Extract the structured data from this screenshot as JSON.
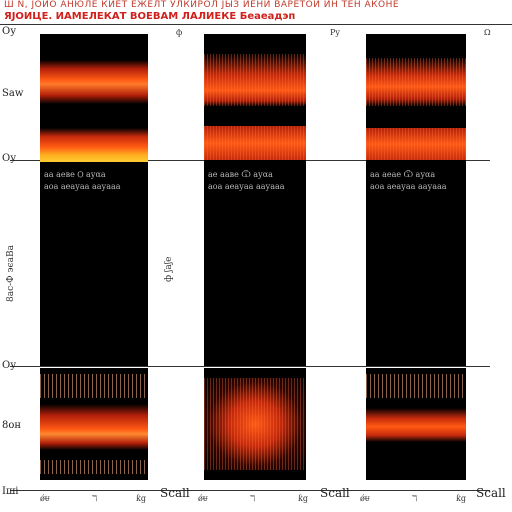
{
  "header": {
    "line1": "Ш  N,  ЈОИО  АНЮЛЕ  КИЕТ  ЕЖЕЛТ  УЛКИРОЛ  ЈЫЗ  ИЕНИ  ВАРЕТОИ  ИН  ТЕН  АКОНЕ",
    "line2": "ЯЈОИЦЕ. ИАМЕЛЕКАТ  ВОЕВАМ   ЛАЛИЕКЕ    Беаеадэп"
  },
  "left_axis": {
    "top_label": "Оу",
    "row1_label": "Sаw",
    "mid_label": "Оу",
    "vertical_label": "8ас-Ф ϶єаВа",
    "low_label": "Оу",
    "bottom_label": "8он",
    "foot_label": "Іші"
  },
  "columns": [
    {
      "top_marker": "ф",
      "caption": "аа аеве Ѻ ауαа",
      "caption2": "аоа аеауаа аауааа",
      "foot": [
        "ǿᵾ",
        "ℸ",
        "ƙg"
      ],
      "foot_right": "Sсаll"
    },
    {
      "top_marker": "Ρy",
      "caption": "ае ааве Ѿ ауαа",
      "caption2": "аоа аеауаа аауааа",
      "foot": [
        "ǿᵾ",
        "ℸ",
        "ƙg"
      ],
      "foot_right": "Sсаll"
    },
    {
      "top_marker": "Ω",
      "caption": "аа аеае Ѿ ауαа",
      "caption2": "аоа аеауаа аауааа",
      "foot": [
        "ǿᵾ",
        "ℸ",
        "ƙg"
      ],
      "foot_right": "Sсаll"
    }
  ],
  "mid_vertical": "ф ʃаʃе",
  "colors": {
    "panel": "#000000",
    "glow_hot": "#ffcc33",
    "glow_mid": "#ff5a14",
    "glow_dark": "#b3200a"
  }
}
